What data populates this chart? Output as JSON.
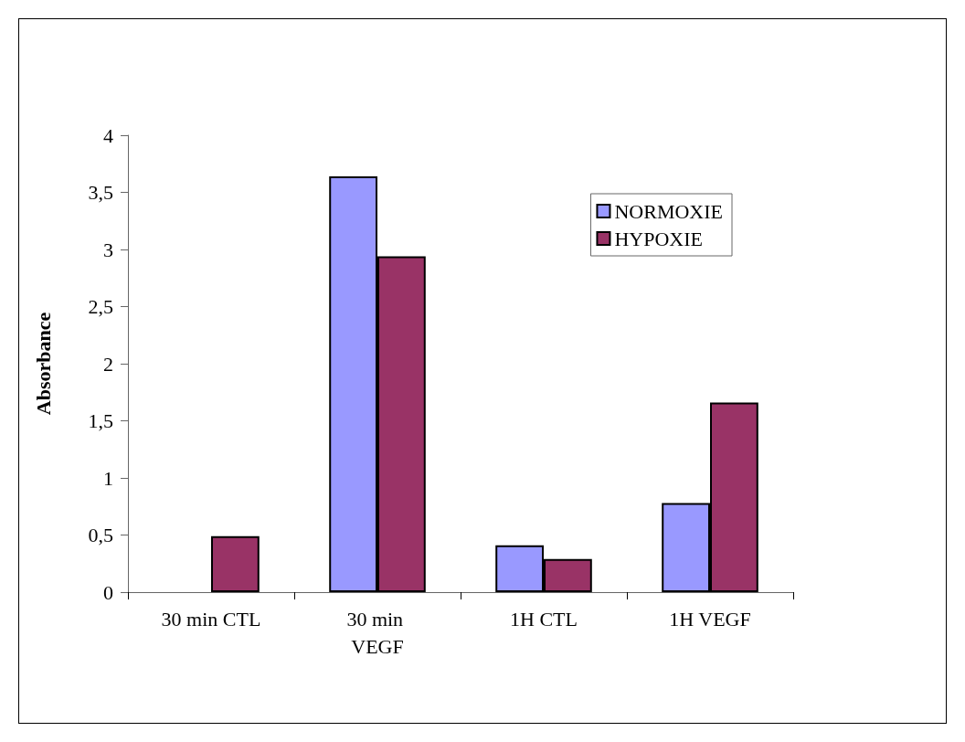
{
  "chart_data": {
    "type": "bar",
    "ylabel": "Absorbance",
    "categories": [
      "30 min CTL",
      "30 min VEGF",
      "1H CTL",
      "1H VEGF"
    ],
    "series": [
      {
        "name": "NORMOXIE",
        "color": "#9999ff",
        "values": [
          null,
          3.64,
          0.41,
          0.78
        ]
      },
      {
        "name": "HYPOXIE",
        "color": "#993366",
        "values": [
          0.49,
          2.94,
          0.29,
          1.66
        ]
      }
    ],
    "ylim": [
      0,
      4
    ],
    "yticks": [
      0,
      {
        "value": 0.5,
        "label": "0,5"
      },
      1,
      {
        "value": 1.5,
        "label": "1,5"
      },
      2,
      {
        "value": 2.5,
        "label": "2,5"
      },
      3,
      {
        "value": 3.5,
        "label": "3,5"
      },
      4
    ],
    "grid": false,
    "legend": "top right"
  }
}
